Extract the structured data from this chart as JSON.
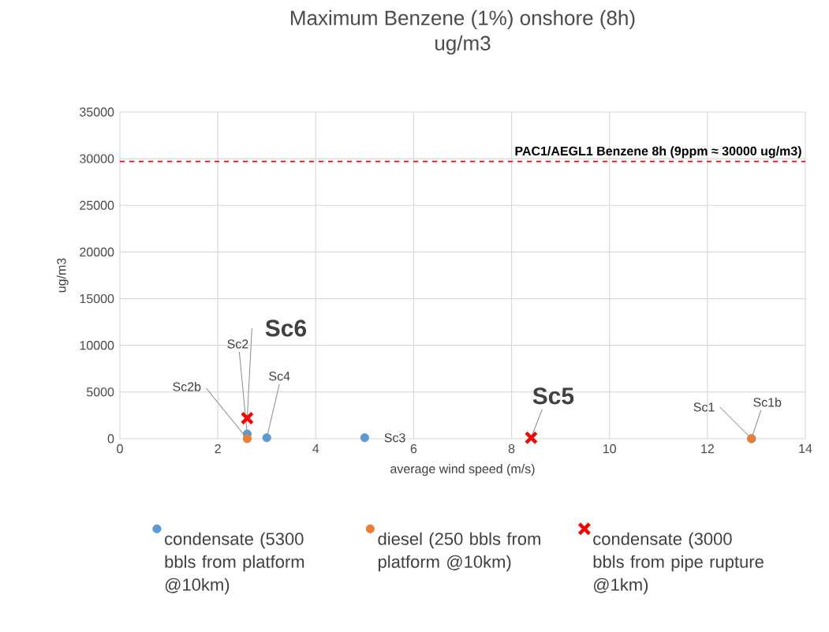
{
  "chart_data": {
    "type": "scatter",
    "title": "Maximum Benzene (1%) onshore (8h)",
    "subtitle": "ug/m3",
    "xlabel": "average wind speed (m/s)",
    "ylabel": "ug/m3",
    "xlim": [
      0,
      14
    ],
    "xticks": [
      0,
      2,
      4,
      6,
      8,
      10,
      12,
      14
    ],
    "ylim": [
      0,
      35000
    ],
    "yticks": [
      0,
      5000,
      10000,
      15000,
      20000,
      25000,
      30000,
      35000
    ],
    "grid": true,
    "legend": "bottom",
    "series": [
      {
        "name": "condensate (5300 bbls from platform @10km)",
        "color": "#5b9bd5",
        "marker": "circle",
        "x": [
          2.6,
          3.0,
          5.0,
          12.9
        ],
        "values": [
          500,
          100,
          100,
          0
        ]
      },
      {
        "name": "diesel (250 bbls from platform @10km)",
        "color": "#ed7d31",
        "marker": "circle",
        "x": [
          2.6,
          12.9
        ],
        "values": [
          0,
          0
        ]
      },
      {
        "name": "condensate (3000 bbls from pipe rupture @1km)",
        "color": "#ff0000",
        "marker": "cross",
        "x": [
          2.6,
          8.4
        ],
        "values": [
          2200,
          100
        ]
      }
    ],
    "ref_lines": [
      {
        "axis": "y",
        "value": 29700,
        "label": "PAC1/AEGL1 Benzene 8h (9ppm ≈ 30000 ug/m3)",
        "color": "#ff0000",
        "line_style": "dashed"
      }
    ],
    "annotations": [
      {
        "text": "Sc2b",
        "x": 2.6,
        "y": 0
      },
      {
        "text": "Sc2",
        "x": 2.6,
        "y": 500
      },
      {
        "text": "Sc6",
        "x": 2.6,
        "y": 2200
      },
      {
        "text": "Sc4",
        "x": 3.0,
        "y": 100
      },
      {
        "text": "Sc3",
        "x": 5.0,
        "y": 100
      },
      {
        "text": "Sc5",
        "x": 8.4,
        "y": 100
      },
      {
        "text": "Sc1",
        "x": 12.9,
        "y": 0
      },
      {
        "text": "Sc1b",
        "x": 12.9,
        "y": 0
      }
    ]
  }
}
